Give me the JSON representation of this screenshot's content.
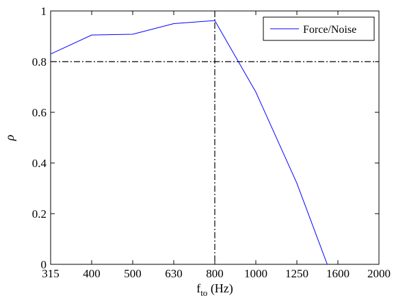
{
  "chart_data": {
    "type": "line",
    "x_ticks": [
      "315",
      "400",
      "500",
      "630",
      "800",
      "1000",
      "1250",
      "1600",
      "2000"
    ],
    "y_ticks": [
      "0",
      "0.2",
      "0.4",
      "0.6",
      "0.8",
      "1"
    ],
    "ylim": [
      0,
      1
    ],
    "xlabel_main": "f",
    "xlabel_sub": "to",
    "xlabel_unit": "(Hz)",
    "ylabel": "ρ",
    "grid": false,
    "legend_placement": "top-right",
    "series": [
      {
        "name": "Force/Noise",
        "color": "#0000ff",
        "x_index": [
          0,
          1,
          2,
          3,
          4,
          5,
          6,
          6.74
        ],
        "x": [
          "315",
          "400",
          "500",
          "630",
          "800",
          "1000",
          "1250",
          "1450"
        ],
        "values": [
          0.83,
          0.905,
          0.908,
          0.95,
          0.962,
          0.68,
          0.32,
          0.0
        ]
      }
    ],
    "reference_lines": [
      {
        "orientation": "horizontal",
        "value": 0.8,
        "style": "dash-dot",
        "color": "#000000"
      },
      {
        "orientation": "vertical",
        "value": "800",
        "x_index": 4,
        "style": "dash-dot",
        "color": "#000000"
      }
    ]
  }
}
